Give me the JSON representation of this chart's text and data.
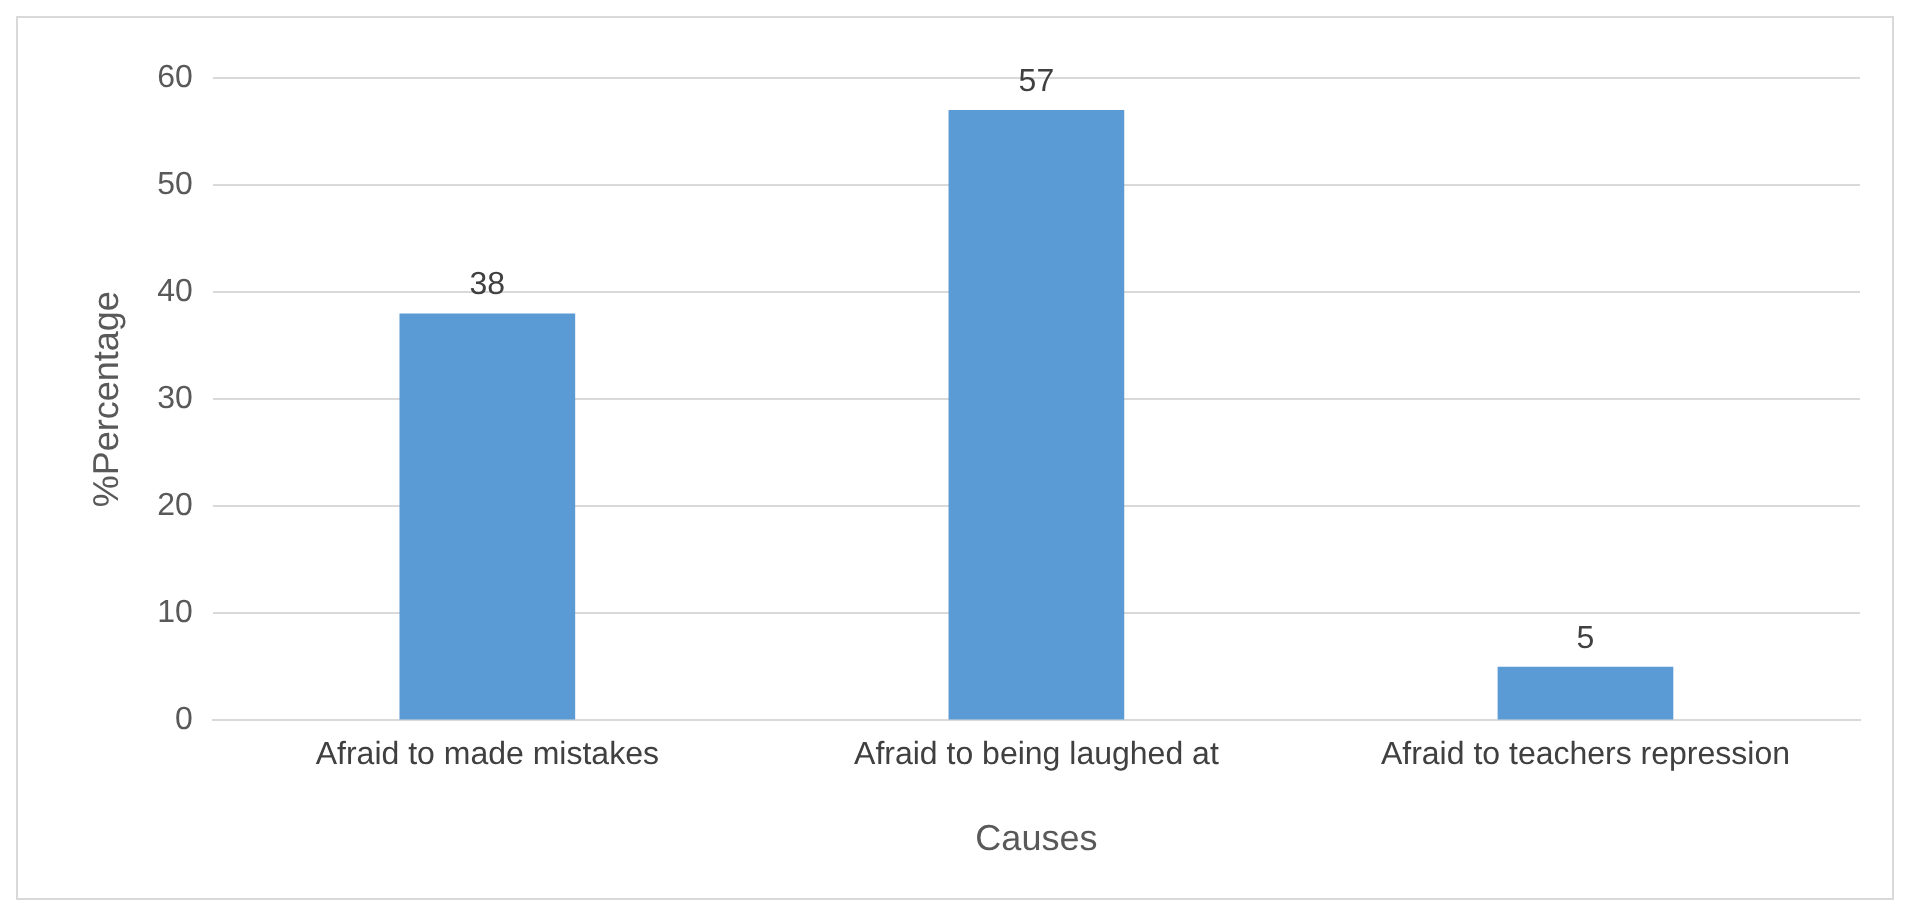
{
  "chart_data": {
    "type": "bar",
    "xlabel": "Causes",
    "ylabel": "%Percentage",
    "categories": [
      "Afraid to made mistakes",
      "Afraid to being laughed at",
      "Afraid to teachers repression"
    ],
    "values": [
      38,
      57,
      5
    ],
    "color": "#5b9bd5",
    "ylim": [
      0,
      60
    ],
    "yticks": [
      0,
      10,
      20,
      30,
      40,
      50,
      60
    ],
    "grid": "y",
    "data_labels": true,
    "legend": false
  }
}
